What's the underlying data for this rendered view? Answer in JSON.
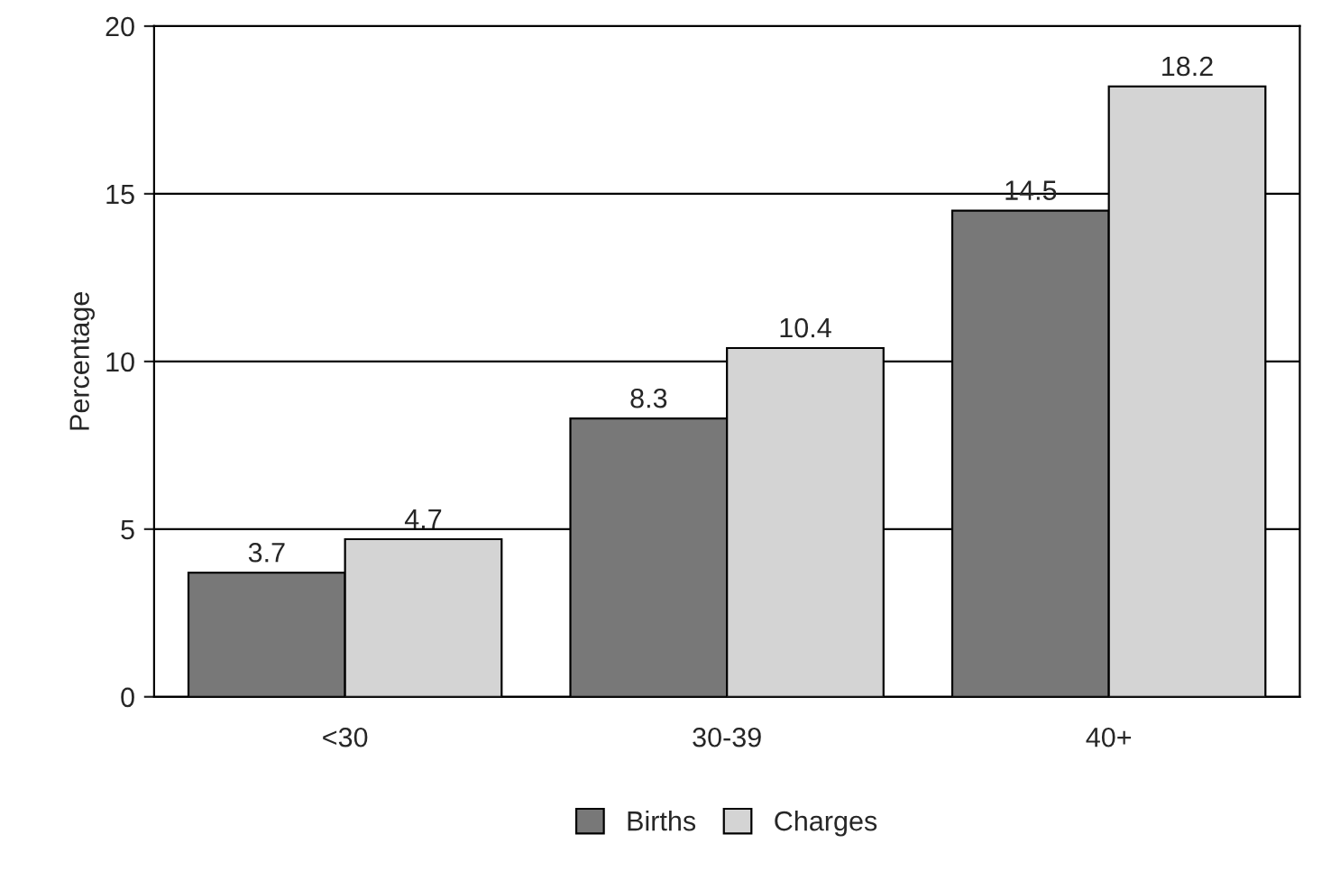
{
  "chart_data": {
    "type": "bar",
    "ylabel": "Percentage",
    "categories": [
      "<30",
      "30-39",
      "40+"
    ],
    "series": [
      {
        "name": "Births",
        "color": "#787878",
        "values": [
          3.7,
          8.3,
          14.5
        ]
      },
      {
        "name": "Charges",
        "color": "#d4d4d4",
        "values": [
          4.7,
          10.4,
          18.2
        ]
      }
    ],
    "ylim": [
      0,
      20
    ],
    "yticks": [
      0,
      5,
      10,
      15,
      20
    ],
    "grid": "y",
    "legend": "bottom",
    "data_labels": true
  }
}
